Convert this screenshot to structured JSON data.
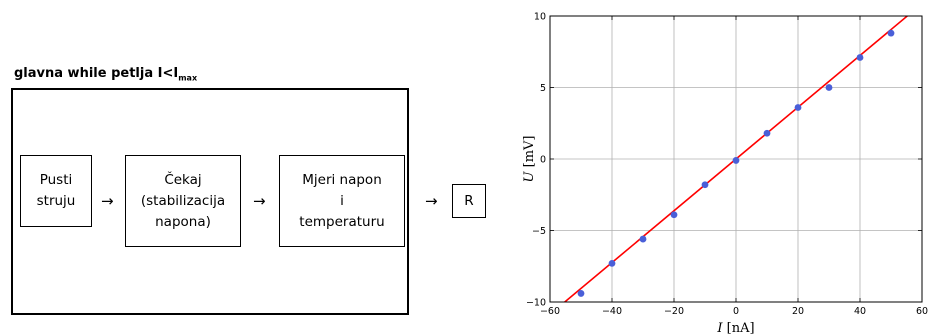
{
  "diagram": {
    "loop_title": "glavna while petlja I<I",
    "loop_title_sub": "max",
    "boxes": [
      {
        "lines": [
          "Pusti",
          "struju"
        ]
      },
      {
        "lines": [
          "Čekaj",
          "(stabilizacija",
          "napona)"
        ]
      },
      {
        "lines": [
          "Mjeri napon",
          "i",
          "temperaturu"
        ]
      },
      {
        "lines": [
          "R"
        ]
      }
    ],
    "arrow_glyph": "→"
  },
  "chart_data": {
    "type": "scatter",
    "xlabel_var": "I",
    "xlabel_unit": " [nA]",
    "ylabel_var": "U",
    "ylabel_unit": " [mV]",
    "xlim": [
      -60,
      60
    ],
    "ylim": [
      -10,
      10
    ],
    "xticks": [
      -60,
      -40,
      -20,
      0,
      20,
      40,
      60
    ],
    "yticks": [
      -10,
      -5,
      0,
      5,
      10
    ],
    "grid": true,
    "points": [
      [
        -50,
        -9.4
      ],
      [
        -40,
        -7.3
      ],
      [
        -30,
        -5.6
      ],
      [
        -20,
        -3.9
      ],
      [
        -10,
        -1.8
      ],
      [
        0,
        -0.1
      ],
      [
        10,
        1.8
      ],
      [
        20,
        3.6
      ],
      [
        30,
        5.0
      ],
      [
        40,
        7.1
      ],
      [
        50,
        8.8
      ]
    ],
    "point_color": "#4a5fd8",
    "fit_line": {
      "slope": 0.181,
      "intercept": 0.0,
      "color": "#ff0000"
    }
  }
}
